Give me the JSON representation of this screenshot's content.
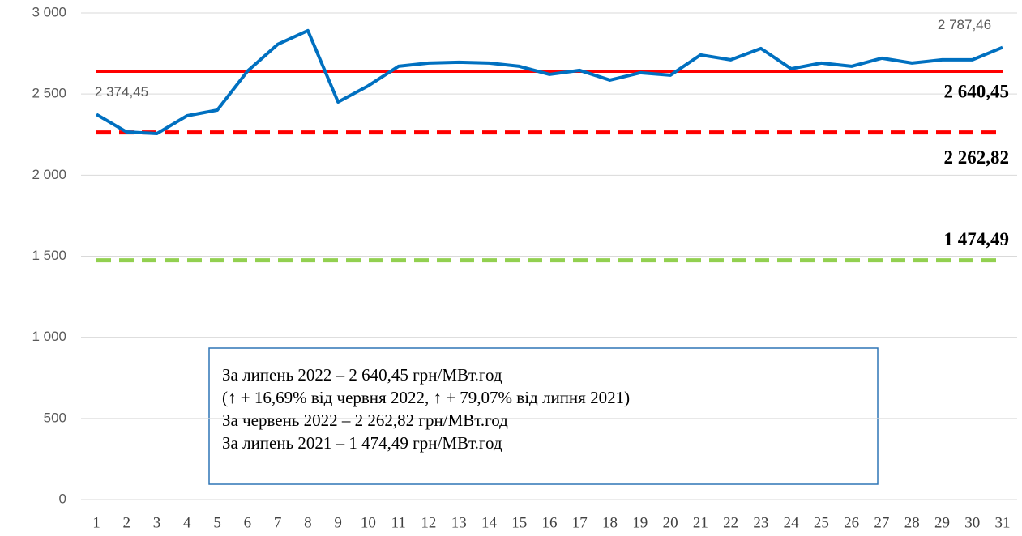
{
  "chart_data": {
    "type": "line",
    "categories": [
      "1",
      "2",
      "3",
      "4",
      "5",
      "6",
      "7",
      "8",
      "9",
      "10",
      "11",
      "12",
      "13",
      "14",
      "15",
      "16",
      "17",
      "18",
      "19",
      "20",
      "21",
      "22",
      "23",
      "24",
      "25",
      "26",
      "27",
      "28",
      "29",
      "30",
      "31"
    ],
    "series": [
      {
        "color": "#0070c0",
        "values": [
          2374.45,
          2266,
          2256,
          2366,
          2401,
          2641,
          2806,
          2891,
          2451,
          2551,
          2671,
          2691,
          2696,
          2691,
          2671,
          2621,
          2646,
          2586,
          2631,
          2616,
          2741,
          2711,
          2781,
          2656,
          2691,
          2671,
          2721,
          2691,
          2711,
          2711,
          2787.46
        ],
        "value_labels": [
          "2 374,45",
          null,
          null,
          null,
          null,
          null,
          null,
          null,
          null,
          null,
          null,
          null,
          null,
          null,
          null,
          null,
          null,
          null,
          null,
          null,
          null,
          null,
          null,
          null,
          null,
          null,
          null,
          null,
          null,
          null,
          "2 787,46"
        ]
      }
    ],
    "reference_lines": [
      {
        "value": 2640.45,
        "label": "2 640,45",
        "color": "#ff0000",
        "style": "solid"
      },
      {
        "value": 2262.82,
        "label": "2 262,82",
        "color": "#ff0000",
        "style": "dashed"
      },
      {
        "value": 1474.49,
        "label": "1 474,49",
        "color": "#92d050",
        "style": "dashed"
      }
    ],
    "ylim": [
      0,
      3000
    ],
    "yticks": [
      0,
      500,
      {
        "value": 1000,
        "label": "1 000"
      },
      {
        "value": 1500,
        "label": "1 500"
      },
      {
        "value": 2000,
        "label": "2 000"
      },
      {
        "value": 2500,
        "label": "2 500"
      },
      {
        "value": 3000,
        "label": "3 000"
      }
    ],
    "grid": true,
    "annotation": [
      "За липень 2022 – 2 640,45 грн/МВт.год",
      "(↑ + 16,69% від червня 2022, ↑ + 79,07% від липня 2021)",
      "За червень 2022 – 2 262,82 грн/МВт.год",
      "За липень 2021 – 1 474,49 грн/МВт.год"
    ]
  }
}
